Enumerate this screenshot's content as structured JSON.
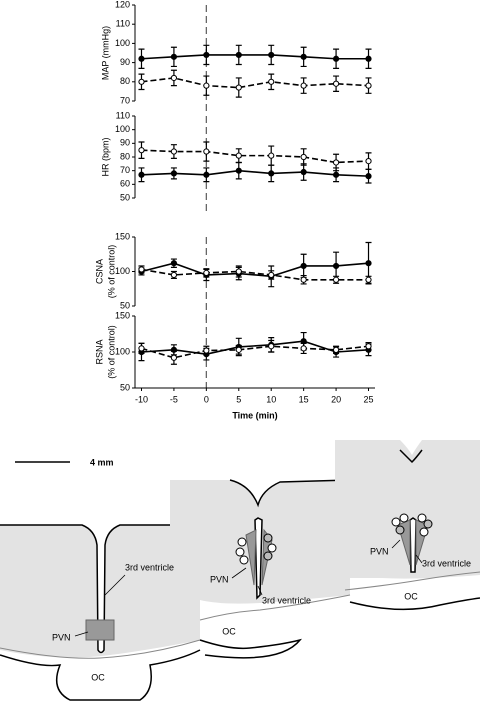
{
  "chart_data": [
    {
      "type": "line",
      "ylabel": [
        "MAP (mmHg)"
      ],
      "x": [
        -10,
        -5,
        0,
        5,
        10,
        15,
        20,
        25
      ],
      "xlim": [
        -11,
        26
      ],
      "vline": 0,
      "ylim": [
        70,
        120
      ],
      "yticks": [
        70,
        80,
        90,
        100,
        110,
        120
      ],
      "series": [
        {
          "color": "#000000",
          "dash": false,
          "marker": "filled",
          "values": [
            92,
            93,
            94,
            94,
            94,
            93,
            92,
            92
          ],
          "errors": [
            5,
            5,
            5,
            5,
            5,
            5,
            5,
            5
          ]
        },
        {
          "color": "#000000",
          "dash": true,
          "marker": "open",
          "values": [
            80,
            82,
            78,
            77,
            80,
            78,
            79,
            78
          ],
          "errors": [
            4,
            4,
            5,
            5,
            4,
            4,
            4,
            4
          ]
        }
      ]
    },
    {
      "type": "line",
      "ylabel": [
        "HR (bpm)"
      ],
      "x": [
        -10,
        -5,
        0,
        5,
        10,
        15,
        20,
        25
      ],
      "xlim": [
        -11,
        26
      ],
      "vline": 0,
      "ylim": [
        50,
        110
      ],
      "yticks": [
        50,
        60,
        70,
        80,
        90,
        100,
        110
      ],
      "series": [
        {
          "color": "#000000",
          "dash": true,
          "marker": "open",
          "values": [
            85,
            84,
            84,
            81,
            81,
            80,
            76,
            77
          ],
          "errors": [
            6,
            5,
            7,
            5,
            7,
            6,
            6,
            6
          ]
        },
        {
          "color": "#000000",
          "dash": false,
          "marker": "filled",
          "values": [
            67,
            68,
            67,
            70,
            68,
            69,
            67,
            66
          ],
          "errors": [
            5,
            4,
            5,
            6,
            6,
            6,
            5,
            5
          ]
        }
      ]
    },
    {
      "type": "line",
      "ylabel": [
        "CSNA",
        "(% of control)"
      ],
      "x": [
        -10,
        -5,
        0,
        5,
        10,
        15,
        20,
        25
      ],
      "xlim": [
        -11,
        26
      ],
      "vline": 0,
      "ylim": [
        50,
        150
      ],
      "yticks": [
        50,
        100,
        150
      ],
      "series": [
        {
          "color": "#000000",
          "dash": false,
          "marker": "filled",
          "values": [
            100,
            112,
            95,
            97,
            93,
            108,
            108,
            112
          ],
          "errors": [
            5,
            6,
            8,
            9,
            15,
            17,
            20,
            30
          ]
        },
        {
          "color": "#000000",
          "dash": true,
          "marker": "open",
          "values": [
            103,
            95,
            98,
            100,
            95,
            88,
            88,
            88
          ],
          "errors": [
            5,
            5,
            6,
            8,
            6,
            6,
            5,
            5
          ]
        }
      ]
    },
    {
      "type": "line",
      "ylabel": [
        "RSNA",
        "(% of control)"
      ],
      "x": [
        -10,
        -5,
        0,
        5,
        10,
        15,
        20,
        25
      ],
      "xlim": [
        -11,
        26
      ],
      "vline": 0,
      "ylim": [
        50,
        150
      ],
      "yticks": [
        50,
        100,
        150
      ],
      "series": [
        {
          "color": "#000000",
          "dash": false,
          "marker": "filled",
          "values": [
            100,
            103,
            97,
            107,
            110,
            115,
            100,
            103
          ],
          "errors": [
            12,
            7,
            8,
            12,
            10,
            12,
            7,
            8
          ]
        },
        {
          "color": "#000000",
          "dash": true,
          "marker": "open",
          "values": [
            105,
            92,
            102,
            103,
            108,
            105,
            103,
            108
          ],
          "errors": [
            7,
            9,
            6,
            6,
            8,
            7,
            5,
            5
          ]
        }
      ],
      "xlabel": "Time (min)",
      "xticks": [
        -10,
        -5,
        0,
        5,
        10,
        15,
        20,
        25
      ]
    }
  ],
  "diagram": {
    "scale_bar": "4 mm",
    "sections": [
      {
        "ventricle": "3rd ventricle",
        "pvn": "PVN",
        "oc": "OC"
      },
      {
        "ventricle": "3rd ventricle",
        "pvn": "PVN",
        "oc": "OC"
      },
      {
        "ventricle": "3rd ventricle",
        "pvn": "PVN",
        "oc": "OC"
      }
    ]
  }
}
